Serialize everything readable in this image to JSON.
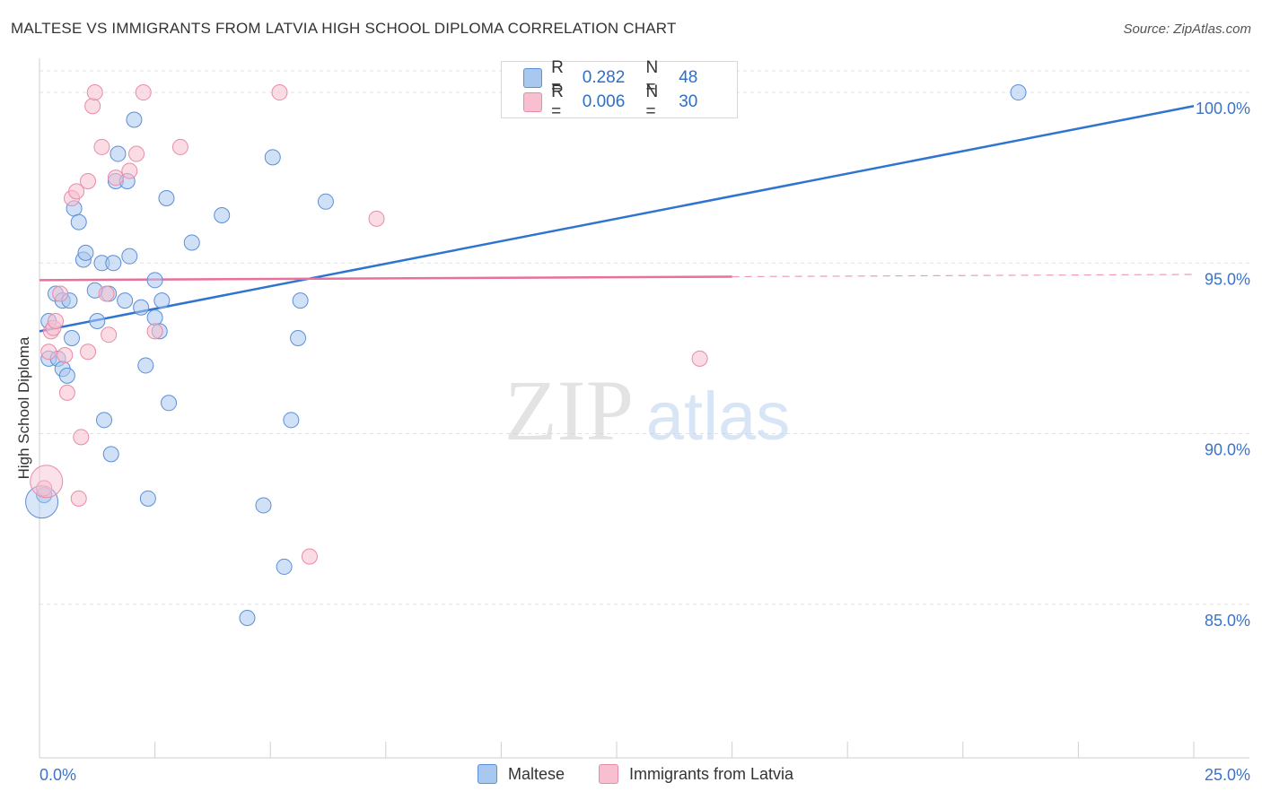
{
  "title": "MALTESE VS IMMIGRANTS FROM LATVIA HIGH SCHOOL DIPLOMA CORRELATION CHART",
  "source": "Source: ZipAtlas.com",
  "watermark": {
    "zip": "ZIP",
    "atlas": "atlas"
  },
  "legend": {
    "rows": [
      {
        "r_label": "R =",
        "r_value": "0.282",
        "n_label": "N =",
        "n_value": "48"
      },
      {
        "r_label": "R =",
        "r_value": "0.006",
        "n_label": "N =",
        "n_value": "30"
      }
    ]
  },
  "colors": {
    "maltese_fill": "#a9c8f0",
    "maltese_stroke": "#5b8fd6",
    "maltese_line": "#2f74d0",
    "latvia_fill": "#f7bfd0",
    "latvia_stroke": "#e98aa8",
    "latvia_line": "#e8709a",
    "axis_text": "#3b73c8",
    "grid": "#dde3ea"
  },
  "chart_data": {
    "type": "scatter",
    "title": "MALTESE VS IMMIGRANTS FROM LATVIA HIGH SCHOOL DIPLOMA CORRELATION CHART",
    "xlabel": "",
    "ylabel": "High School Diploma",
    "xlim": [
      0,
      25
    ],
    "ylim": [
      80.5,
      101
    ],
    "x_tick_labels": [
      "0.0%",
      "25.0%"
    ],
    "y_ticks": [
      85,
      90,
      95,
      100
    ],
    "y_tick_labels": [
      "85.0%",
      "90.0%",
      "95.0%",
      "100.0%"
    ],
    "grid": true,
    "legend_position": "top-center",
    "series": [
      {
        "name": "Maltese",
        "r": 0.282,
        "n": 48,
        "trend": {
          "x": [
            0,
            25
          ],
          "y": [
            93.0,
            99.6
          ]
        },
        "points": [
          [
            0.1,
            88.2
          ],
          [
            0.2,
            93.3
          ],
          [
            0.2,
            92.2
          ],
          [
            0.35,
            94.1
          ],
          [
            0.4,
            92.2
          ],
          [
            0.5,
            93.9
          ],
          [
            0.5,
            91.9
          ],
          [
            0.6,
            91.7
          ],
          [
            0.65,
            93.9
          ],
          [
            0.7,
            92.8
          ],
          [
            0.75,
            96.6
          ],
          [
            0.85,
            96.2
          ],
          [
            0.95,
            95.1
          ],
          [
            1.0,
            95.3
          ],
          [
            1.2,
            94.2
          ],
          [
            1.25,
            93.3
          ],
          [
            1.35,
            95.0
          ],
          [
            1.4,
            90.4
          ],
          [
            1.5,
            94.1
          ],
          [
            1.55,
            89.4
          ],
          [
            1.6,
            95.0
          ],
          [
            1.65,
            97.4
          ],
          [
            1.7,
            98.2
          ],
          [
            1.85,
            93.9
          ],
          [
            1.9,
            97.4
          ],
          [
            1.95,
            95.2
          ],
          [
            2.05,
            99.2
          ],
          [
            2.2,
            93.7
          ],
          [
            2.3,
            92.0
          ],
          [
            2.35,
            88.1
          ],
          [
            2.5,
            93.4
          ],
          [
            2.5,
            94.5
          ],
          [
            2.6,
            93.0
          ],
          [
            2.65,
            93.9
          ],
          [
            2.75,
            96.9
          ],
          [
            2.8,
            90.9
          ],
          [
            3.3,
            95.6
          ],
          [
            3.95,
            96.4
          ],
          [
            4.5,
            84.6
          ],
          [
            4.85,
            87.9
          ],
          [
            5.05,
            98.1
          ],
          [
            5.3,
            86.1
          ],
          [
            5.45,
            90.4
          ],
          [
            5.6,
            92.8
          ],
          [
            5.65,
            93.9
          ],
          [
            6.2,
            96.8
          ],
          [
            21.2,
            100.0
          ],
          [
            0.05,
            88.0
          ]
        ]
      },
      {
        "name": "Immigrants from Latvia",
        "r": 0.006,
        "n": 30,
        "trend": {
          "x": [
            0,
            15
          ],
          "y": [
            94.5,
            94.6
          ]
        },
        "points": [
          [
            0.1,
            88.4
          ],
          [
            0.2,
            92.4
          ],
          [
            0.25,
            93.0
          ],
          [
            0.3,
            93.1
          ],
          [
            0.35,
            93.3
          ],
          [
            0.45,
            94.1
          ],
          [
            0.55,
            92.3
          ],
          [
            0.6,
            91.2
          ],
          [
            0.7,
            96.9
          ],
          [
            0.8,
            97.1
          ],
          [
            0.85,
            88.1
          ],
          [
            0.9,
            89.9
          ],
          [
            1.05,
            97.4
          ],
          [
            1.05,
            92.4
          ],
          [
            1.15,
            99.6
          ],
          [
            1.2,
            100.0
          ],
          [
            1.35,
            98.4
          ],
          [
            1.45,
            94.1
          ],
          [
            1.5,
            92.9
          ],
          [
            1.65,
            97.5
          ],
          [
            1.95,
            97.7
          ],
          [
            2.1,
            98.2
          ],
          [
            2.25,
            100.0
          ],
          [
            2.5,
            93.0
          ],
          [
            3.05,
            98.4
          ],
          [
            5.2,
            100.0
          ],
          [
            5.85,
            86.4
          ],
          [
            7.3,
            96.3
          ],
          [
            14.3,
            92.2
          ],
          [
            0.15,
            88.6
          ]
        ]
      }
    ]
  },
  "bottom_legend": [
    {
      "label": "Maltese"
    },
    {
      "label": "Immigrants from Latvia"
    }
  ]
}
